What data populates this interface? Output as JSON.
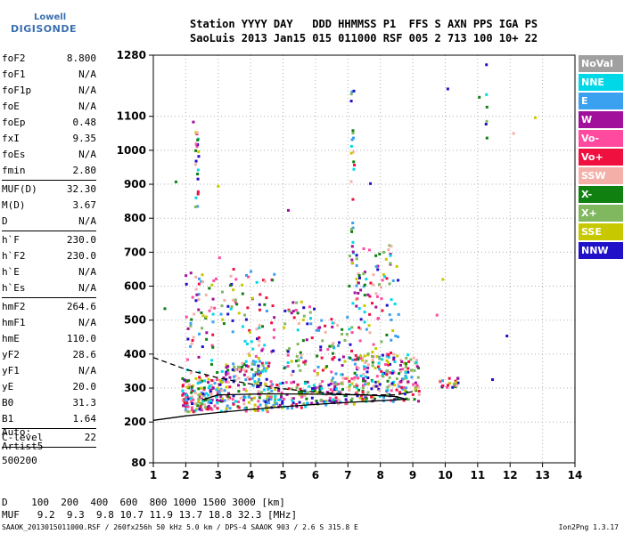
{
  "logo": {
    "line1": "Lowell",
    "line2": "DIGISONDE"
  },
  "header": {
    "row1": "Station YYYY DAY   DDD HHMMSS P1  FFS S AXN PPS IGA PS",
    "row2": "SaoLuis 2013 Jan15 015 011000 RSF 005 2 713 100 10+ 22"
  },
  "params": [
    {
      "name": "foF2",
      "value": "8.800"
    },
    {
      "name": "foF1",
      "value": "N/A"
    },
    {
      "name": "foF1p",
      "value": "N/A"
    },
    {
      "name": "foE",
      "value": "N/A"
    },
    {
      "name": "foEp",
      "value": "0.48"
    },
    {
      "name": "fxI",
      "value": "9.35"
    },
    {
      "name": "foEs",
      "value": "N/A"
    },
    {
      "name": "fmin",
      "value": "2.80",
      "sep": true
    },
    {
      "name": "MUF(D)",
      "value": "32.30"
    },
    {
      "name": "M(D)",
      "value": "3.67"
    },
    {
      "name": "D",
      "value": "N/A",
      "sep": true
    },
    {
      "name": "h`F",
      "value": "230.0"
    },
    {
      "name": "h`F2",
      "value": "230.0"
    },
    {
      "name": "h`E",
      "value": "N/A"
    },
    {
      "name": "h`Es",
      "value": "N/A",
      "sep": true
    },
    {
      "name": "hmF2",
      "value": "264.6"
    },
    {
      "name": "hmF1",
      "value": "N/A"
    },
    {
      "name": "hmE",
      "value": "110.0"
    },
    {
      "name": "yF2",
      "value": "28.6"
    },
    {
      "name": "yF1",
      "value": "N/A"
    },
    {
      "name": "yE",
      "value": "20.0"
    },
    {
      "name": "B0",
      "value": "31.3"
    },
    {
      "name": "B1",
      "value": "1.64",
      "sep": true
    },
    {
      "name": "C-level",
      "value": "22",
      "sep": true
    }
  ],
  "auto": {
    "line1": "Auto:",
    "line2": "Artist5",
    "line3": "500200"
  },
  "legend": [
    {
      "label": "NoVal",
      "color": "#a0a0a0"
    },
    {
      "label": "NNE",
      "color": "#00d8e8"
    },
    {
      "label": "E",
      "color": "#3aa0f0"
    },
    {
      "label": "W",
      "color": "#a0109a"
    },
    {
      "label": "Vo-",
      "color": "#ff4aa0"
    },
    {
      "label": "Vo+",
      "color": "#f01040"
    },
    {
      "label": "SSW",
      "color": "#f4b0a8"
    },
    {
      "label": "X-",
      "color": "#108010"
    },
    {
      "label": "X+",
      "color": "#80b860"
    },
    {
      "label": "SSE",
      "color": "#c8c800"
    },
    {
      "label": "NNW",
      "color": "#2010c8"
    }
  ],
  "footer": {
    "row1": "D    100  200  400  600  800 1000 1500 3000 [km]",
    "row2": "MUF   9.2  9.3  9.8 10.7 11.9 13.7 18.8 32.3 [MHz]",
    "source": "SAAOK_2013015011000.RSF / 260fx256h 50 kHz 5.0 km / DPS-4 SAAOK 903 / 2.6 S 315.8 E",
    "version": "Ion2Png 1.3.17"
  },
  "chart_data": {
    "type": "scatter",
    "xlabel": "",
    "ylabel": "",
    "xlim": [
      1,
      14
    ],
    "ylim": [
      80,
      1280
    ],
    "xticks": [
      "1",
      "2",
      "3",
      "4",
      "5",
      "6",
      "7",
      "8",
      "9",
      "10",
      "11",
      "12",
      "13",
      "14"
    ],
    "yticks": [
      {
        "value": 80,
        "label": "80"
      },
      {
        "value": 200,
        "label": "200"
      },
      {
        "value": 300,
        "label": "300"
      },
      {
        "value": 400,
        "label": "400"
      },
      {
        "value": 500,
        "label": "500"
      },
      {
        "value": 600,
        "label": "600"
      },
      {
        "value": 700,
        "label": "700"
      },
      {
        "value": 800,
        "label": "800"
      },
      {
        "value": 900,
        "label": "900"
      },
      {
        "value": 1000,
        "label": "1000"
      },
      {
        "value": 1100,
        "label": "1100"
      },
      {
        "value": 1280,
        "label": "1280"
      }
    ],
    "grid": true,
    "clusters": [
      {
        "x": [
          1.9,
          3.1
        ],
        "y": [
          230,
          330
        ],
        "n": 160
      },
      {
        "x": [
          3.1,
          4.6
        ],
        "y": [
          230,
          380
        ],
        "n": 160
      },
      {
        "x": [
          4.6,
          6.0
        ],
        "y": [
          240,
          320
        ],
        "n": 90
      },
      {
        "x": [
          6.0,
          7.2
        ],
        "y": [
          250,
          330
        ],
        "n": 80
      },
      {
        "x": [
          7.2,
          9.2
        ],
        "y": [
          260,
          400
        ],
        "n": 200
      },
      {
        "x": [
          2.0,
          4.8
        ],
        "y": [
          330,
          650
        ],
        "n": 140
      },
      {
        "x": [
          5.0,
          6.0
        ],
        "y": [
          330,
          560
        ],
        "n": 50
      },
      {
        "x": [
          6.0,
          7.0
        ],
        "y": [
          330,
          520
        ],
        "n": 50
      },
      {
        "x": [
          7.0,
          8.6
        ],
        "y": [
          300,
          720
        ],
        "n": 120
      },
      {
        "x": [
          9.8,
          10.4
        ],
        "y": [
          300,
          330
        ],
        "n": 20
      },
      {
        "x": [
          2.3,
          2.4
        ],
        "y": [
          820,
          1100
        ],
        "n": 20
      },
      {
        "x": [
          7.1,
          7.2
        ],
        "y": [
          650,
          1230
        ],
        "n": 25
      },
      {
        "x": [
          11.25,
          11.3
        ],
        "y": [
          1000,
          1270
        ],
        "n": 6
      },
      {
        "x": [
          1.2,
          13.3
        ],
        "y": [
          280,
          1250
        ],
        "n": 25
      }
    ],
    "traces": [
      {
        "style": "solid",
        "x": [
          1.0,
          2.0,
          3.0,
          4.0,
          5.0,
          6.0,
          7.0,
          8.0,
          8.8,
          8.5,
          7.5,
          6.0,
          4.5,
          3.0,
          2.5
        ],
        "y": [
          205,
          218,
          228,
          237,
          245,
          252,
          258,
          263,
          267,
          275,
          280,
          282,
          283,
          280,
          265
        ]
      },
      {
        "style": "dashed",
        "x": [
          1.0,
          2.0,
          3.0,
          4.0,
          5.0,
          6.0,
          7.0,
          7.8,
          8.5,
          9.0
        ],
        "y": [
          390,
          355,
          330,
          312,
          298,
          288,
          282,
          280,
          280,
          290
        ]
      }
    ]
  }
}
